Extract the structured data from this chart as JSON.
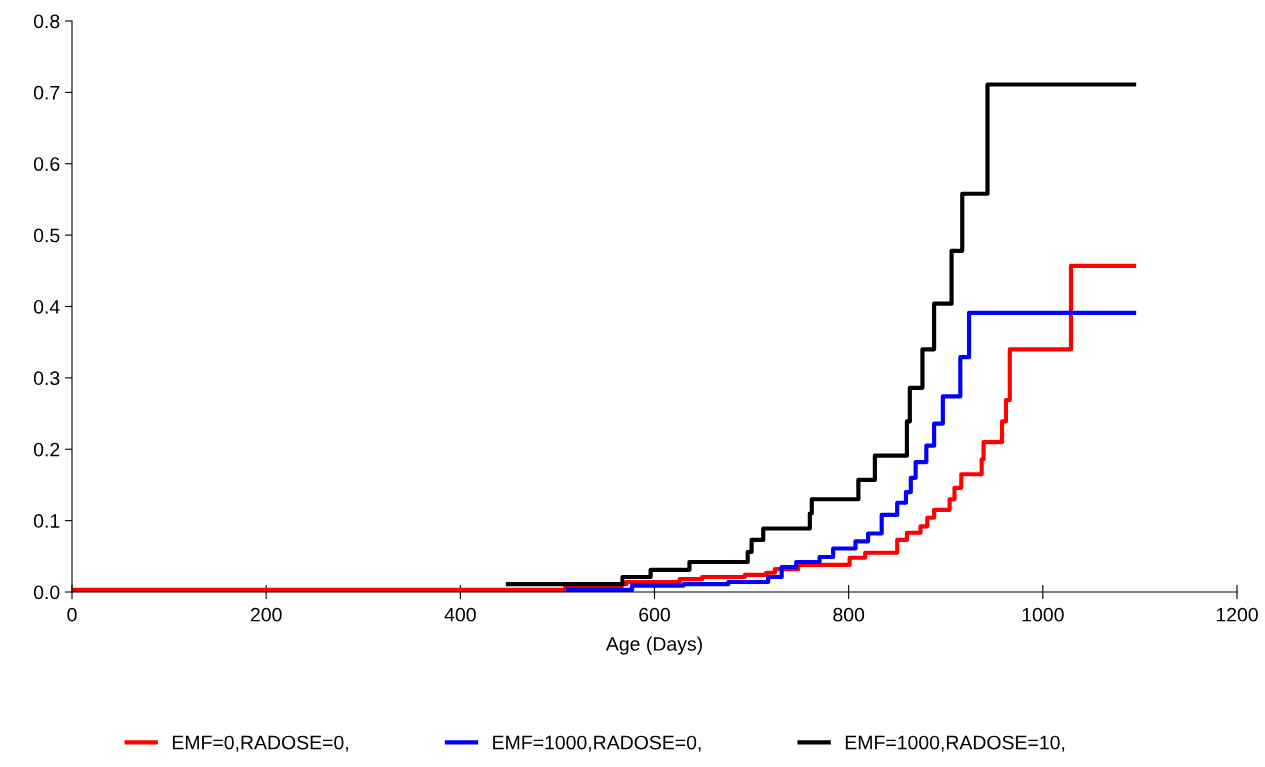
{
  "chart_data": {
    "type": "step",
    "xlabel": "Age (Days)",
    "xlim": [
      0,
      1200
    ],
    "xticks": [
      0,
      200,
      400,
      600,
      800,
      1000,
      1200
    ],
    "ylim": [
      0,
      0.8
    ],
    "yticks": [
      {
        "value": 0,
        "label": "0.0"
      },
      {
        "value": 0.1,
        "label": "0.1"
      },
      {
        "value": 0.2,
        "label": "0.2"
      },
      {
        "value": 0.3,
        "label": "0.3"
      },
      {
        "value": 0.4,
        "label": "0.4"
      },
      {
        "value": 0.5,
        "label": "0.5"
      },
      {
        "value": 0.6,
        "label": "0.6"
      },
      {
        "value": 0.7,
        "label": "0.7"
      },
      {
        "value": 0.8,
        "label": "0.8"
      }
    ],
    "grid": false,
    "legend": "bottom",
    "marker": "none",
    "line_style": "solid",
    "series": [
      {
        "name": "EMF=0,RADOSE=0,",
        "color": "#ff0000",
        "x": [
          0,
          508,
          566,
          571,
          626,
          649,
          693,
          715,
          724,
          748,
          801,
          817,
          850,
          860,
          874,
          881,
          888,
          904,
          909,
          916,
          937,
          939,
          958,
          962,
          966,
          1029,
          1094
        ],
        "values": [
          0.003,
          0.007,
          0.011,
          0.014,
          0.018,
          0.021,
          0.024,
          0.027,
          0.032,
          0.038,
          0.048,
          0.055,
          0.073,
          0.083,
          0.092,
          0.104,
          0.115,
          0.13,
          0.146,
          0.165,
          0.186,
          0.21,
          0.239,
          0.269,
          0.34,
          0.457,
          0.457
        ]
      },
      {
        "name": "EMF=1000,RADOSE=0,",
        "color": "#0000ff",
        "x": [
          511,
          577,
          630,
          676,
          717,
          731,
          746,
          770,
          784,
          807,
          820,
          834,
          850,
          859,
          864,
          869,
          880,
          888,
          897,
          915,
          924,
          1094
        ],
        "values": [
          0.003,
          0.009,
          0.011,
          0.014,
          0.021,
          0.035,
          0.042,
          0.049,
          0.061,
          0.071,
          0.082,
          0.108,
          0.125,
          0.14,
          0.16,
          0.182,
          0.205,
          0.236,
          0.274,
          0.329,
          0.391,
          0.391
        ]
      },
      {
        "name": "EMF=1000,RADOSE=10,",
        "color": "#000000",
        "x": [
          449,
          567,
          596,
          636,
          696,
          700,
          712,
          760,
          762,
          810,
          827,
          860,
          863,
          876,
          888,
          906,
          917,
          943,
          1094
        ],
        "values": [
          0.011,
          0.021,
          0.031,
          0.042,
          0.056,
          0.073,
          0.089,
          0.11,
          0.13,
          0.157,
          0.191,
          0.239,
          0.286,
          0.34,
          0.404,
          0.478,
          0.558,
          0.711,
          0.711
        ]
      }
    ]
  }
}
